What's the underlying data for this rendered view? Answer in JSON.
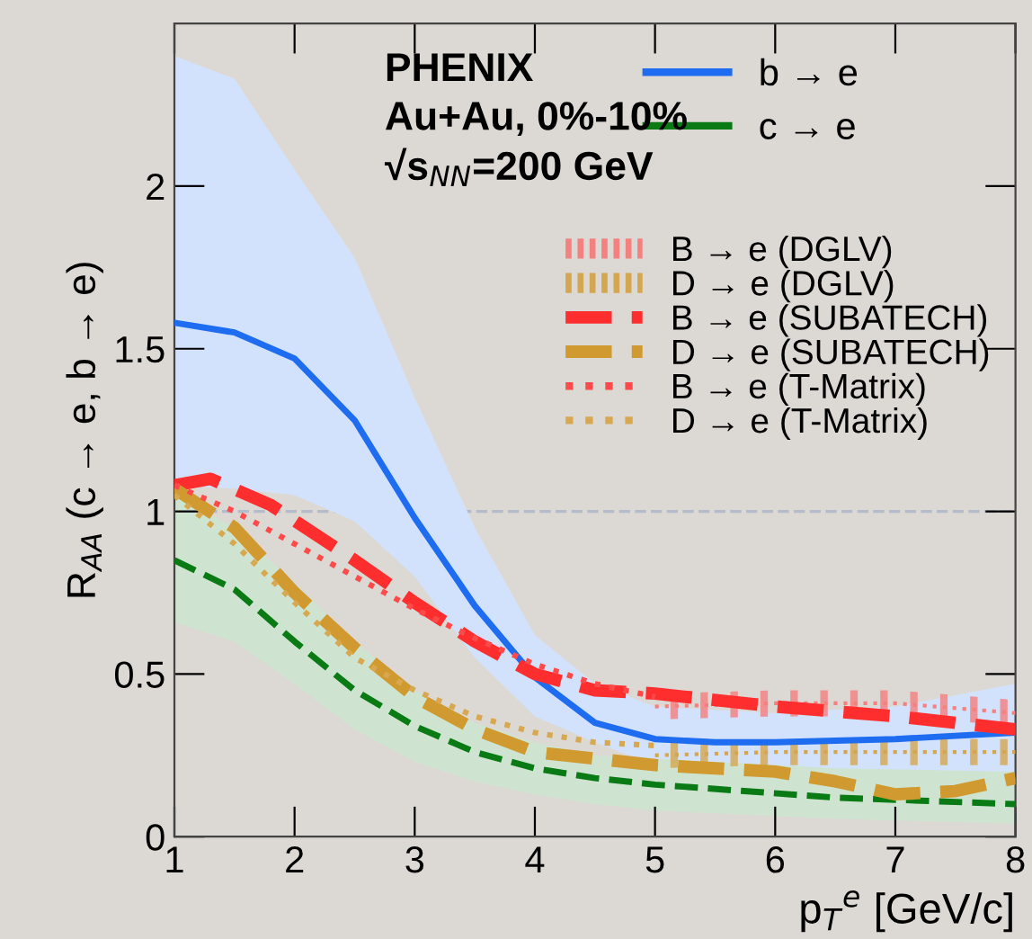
{
  "chart_data": {
    "type": "line",
    "xlabel": "p$_{T}$$^{e}$ [GeV/c]",
    "ylabel": "R$_{AA}$ (c → e, b → e)",
    "annotations": [
      "PHENIX",
      "Au+Au, 0%-10%",
      "√s$_{NN}$=200 GeV"
    ],
    "xlim": [
      1,
      8
    ],
    "xticks": [
      1,
      2,
      3,
      4,
      5,
      6,
      7,
      8
    ],
    "ylim": [
      0,
      2.5
    ],
    "yticks": [
      0,
      0.5,
      1,
      1.5,
      2
    ],
    "grid": false,
    "legend": "top right",
    "marker": "none",
    "ref_lines": [
      {
        "axis": "y",
        "value": 1,
        "color": "#b4bccc",
        "line_style": "dashed"
      }
    ],
    "series": [
      {
        "name": "b → e",
        "color": "#1e6cf0",
        "line_style": "solid",
        "x": [
          1,
          1.5,
          2,
          2.5,
          3,
          3.5,
          4,
          4.5,
          5,
          5.5,
          6,
          7,
          8
        ],
        "values": [
          1.58,
          1.55,
          1.47,
          1.28,
          0.98,
          0.71,
          0.49,
          0.35,
          0.3,
          0.29,
          0.29,
          0.3,
          0.32
        ],
        "upper": [
          2.4,
          2.33,
          2.05,
          1.78,
          1.35,
          0.95,
          0.62,
          0.47,
          0.4,
          0.39,
          0.38,
          0.4,
          0.47
        ],
        "lower": [
          1.08,
          1.07,
          1.05,
          0.97,
          0.8,
          0.55,
          0.37,
          0.29,
          0.22,
          0.21,
          0.2,
          0.2,
          0.2
        ]
      },
      {
        "name": "c → e",
        "color": "#0a7a14",
        "line_style": "dashed",
        "x": [
          1,
          1.5,
          2,
          2.5,
          3,
          3.5,
          4,
          4.5,
          5,
          6.5,
          8
        ],
        "values": [
          0.85,
          0.76,
          0.6,
          0.45,
          0.34,
          0.26,
          0.21,
          0.18,
          0.16,
          0.12,
          0.1
        ],
        "upper": [
          1.05,
          0.95,
          0.78,
          0.6,
          0.45,
          0.35,
          0.29,
          0.25,
          0.24,
          0.21,
          0.2
        ],
        "lower": [
          0.66,
          0.6,
          0.47,
          0.33,
          0.23,
          0.17,
          0.13,
          0.1,
          0.08,
          0.055,
          0.04
        ]
      },
      {
        "name": "B → e (DGLV)",
        "color": "#f48080",
        "line_style": "dotted",
        "x": [
          5,
          6,
          7,
          8
        ],
        "values": [
          0.4,
          0.41,
          0.41,
          0.38
        ],
        "upper": [
          0.44,
          0.45,
          0.45,
          0.42
        ],
        "lower": [
          0.36,
          0.37,
          0.37,
          0.34
        ]
      },
      {
        "name": "D → e (DGLV)",
        "color": "#d4a650",
        "line_style": "dotted",
        "x": [
          5,
          6,
          7,
          8
        ],
        "values": [
          0.25,
          0.26,
          0.26,
          0.26
        ],
        "upper": [
          0.29,
          0.3,
          0.3,
          0.3
        ],
        "lower": [
          0.21,
          0.22,
          0.22,
          0.22
        ]
      },
      {
        "name": "B → e (SUBATECH)",
        "color": "#ff2e2e",
        "line_style": "dashed",
        "x": [
          1,
          1.3,
          1.8,
          2.5,
          3,
          3.5,
          4,
          4.5,
          5,
          6,
          7,
          8
        ],
        "values": [
          1.08,
          1.1,
          1.02,
          0.85,
          0.72,
          0.6,
          0.5,
          0.45,
          0.44,
          0.4,
          0.37,
          0.33
        ]
      },
      {
        "name": "D → e (SUBATECH)",
        "color": "#d09a30",
        "line_style": "dashed",
        "x": [
          1,
          1.5,
          2,
          2.5,
          3,
          3.5,
          4,
          5,
          6,
          6.5,
          7,
          7.5,
          8
        ],
        "values": [
          1.07,
          0.95,
          0.75,
          0.58,
          0.43,
          0.33,
          0.26,
          0.22,
          0.2,
          0.17,
          0.13,
          0.14,
          0.18
        ]
      },
      {
        "name": "B → e (T-Matrix)",
        "color": "#ff4a4a",
        "line_style": "dotted",
        "x": [
          1,
          1.5,
          2,
          2.5,
          3,
          3.5,
          4,
          4.5,
          5
        ],
        "values": [
          1.08,
          1.0,
          0.9,
          0.8,
          0.7,
          0.61,
          0.53,
          0.47,
          0.43
        ]
      },
      {
        "name": "D → e (T-Matrix)",
        "color": "#d8a850",
        "line_style": "dotted",
        "x": [
          1,
          1.5,
          2,
          2.5,
          3,
          3.5,
          4,
          4.5,
          5
        ],
        "values": [
          1.05,
          0.9,
          0.72,
          0.55,
          0.45,
          0.37,
          0.32,
          0.29,
          0.28
        ]
      }
    ]
  }
}
